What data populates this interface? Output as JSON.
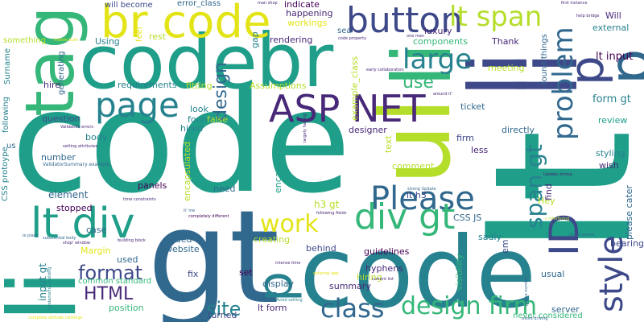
{
  "background": "#ffffff",
  "palette": {
    "yellow": "#e3e418",
    "lime": "#b5de2b",
    "green": "#6ece58",
    "mint": "#35b779",
    "teal": "#1f9e89",
    "cyan": "#26828e",
    "blue": "#31688e",
    "indigo": "#3e4989",
    "purple": "#482878",
    "dark": "#440154"
  },
  "words": [
    {
      "text": "code",
      "c": "teal"
    },
    {
      "text": "lt",
      "c": "teal"
    },
    {
      "text": "gt",
      "c": "blue"
    },
    {
      "text": "code",
      "c": "cyan"
    },
    {
      "text": "ul",
      "c": "lime"
    },
    {
      "text": "li",
      "c": "teal"
    },
    {
      "text": "li",
      "c": "mint"
    },
    {
      "text": "code",
      "c": "teal"
    },
    {
      "text": "br",
      "c": "teal"
    },
    {
      "text": "li",
      "c": "indigo"
    },
    {
      "text": "li",
      "c": "indigo"
    },
    {
      "text": "tag",
      "c": "mint"
    },
    {
      "text": "br code",
      "c": "yellow"
    },
    {
      "text": "p",
      "c": "blue"
    },
    {
      "text": "p",
      "c": "indigo"
    },
    {
      "text": "button",
      "c": "indigo"
    },
    {
      "text": "lt span",
      "c": "lime"
    },
    {
      "text": "large",
      "c": "cyan"
    },
    {
      "text": "page",
      "c": "cyan"
    },
    {
      "text": "ASP NET",
      "c": "purple"
    },
    {
      "text": "p",
      "c": "cyan"
    },
    {
      "text": "Please",
      "c": "blue"
    },
    {
      "text": "div gt",
      "c": "mint"
    },
    {
      "text": "lt div",
      "c": "teal"
    },
    {
      "text": "ID",
      "c": "indigo"
    },
    {
      "text": "work",
      "c": "yellow"
    },
    {
      "text": "problem",
      "c": "blue"
    },
    {
      "text": "style",
      "c": "indigo"
    },
    {
      "text": "design firm",
      "c": "mint"
    },
    {
      "text": "class",
      "c": "blue"
    },
    {
      "text": "site",
      "c": "cyan"
    },
    {
      "text": "format",
      "c": "indigo"
    },
    {
      "text": "HTML",
      "c": "purple"
    },
    {
      "text": "use",
      "c": "mint"
    },
    {
      "text": "design",
      "c": "blue"
    },
    {
      "text": "span gt",
      "c": "cyan"
    },
    {
      "text": "lt input",
      "c": "dark"
    },
    {
      "text": "form gt",
      "c": "cyan"
    },
    {
      "text": "ticket",
      "c": "blue"
    },
    {
      "text": "review",
      "c": "teal"
    },
    {
      "text": "styling",
      "c": "cyan"
    },
    {
      "text": "wish",
      "c": "purple"
    },
    {
      "text": "please cater",
      "c": "blue"
    },
    {
      "text": "bearing",
      "c": "indigo"
    },
    {
      "text": "directly",
      "c": "blue"
    },
    {
      "text": "lt h3",
      "c": "indigo"
    },
    {
      "text": "h3 gt",
      "c": "lime"
    },
    {
      "text": "sadly",
      "c": "cyan"
    },
    {
      "text": "guidelines",
      "c": "dark"
    },
    {
      "text": "hyphens",
      "c": "purple"
    },
    {
      "text": "usual",
      "c": "blue"
    },
    {
      "text": "summary",
      "c": "purple"
    },
    {
      "text": "server",
      "c": "blue"
    },
    {
      "text": "never considered",
      "c": "mint"
    },
    {
      "text": "turned",
      "c": "indigo"
    },
    {
      "text": "lt form",
      "c": "purple"
    },
    {
      "text": "behind",
      "c": "indigo"
    },
    {
      "text": "creating",
      "c": "lime"
    },
    {
      "text": "website",
      "c": "blue"
    },
    {
      "text": "added",
      "c": "blue"
    },
    {
      "text": "position",
      "c": "mint"
    },
    {
      "text": "used",
      "c": "blue"
    },
    {
      "text": "Margin",
      "c": "yellow"
    },
    {
      "text": "input gt",
      "c": "cyan"
    },
    {
      "text": "case",
      "c": "blue"
    },
    {
      "text": "element",
      "c": "blue"
    },
    {
      "text": "stopped",
      "c": "dark"
    },
    {
      "text": "panels",
      "c": "dark"
    },
    {
      "text": "number",
      "c": "blue"
    },
    {
      "text": "question",
      "c": "indigo"
    },
    {
      "text": "body",
      "c": "cyan"
    },
    {
      "text": "look",
      "c": "cyan"
    },
    {
      "text": "found",
      "c": "cyan"
    },
    {
      "text": "hired",
      "c": "cyan"
    },
    {
      "text": "need",
      "c": "blue"
    },
    {
      "text": "requirements",
      "c": "cyan"
    },
    {
      "text": "fitting",
      "c": "lime"
    },
    {
      "text": "Assumptions",
      "c": "lime"
    },
    {
      "text": "hire",
      "c": "purple"
    },
    {
      "text": "Using",
      "c": "cyan"
    },
    {
      "text": "rest",
      "c": "lime"
    },
    {
      "text": "will become",
      "c": "indigo"
    },
    {
      "text": "error_class",
      "c": "blue"
    },
    {
      "text": "indicate",
      "c": "dark"
    },
    {
      "text": "happening",
      "c": "purple"
    },
    {
      "text": "rendering",
      "c": "purple"
    },
    {
      "text": "workings",
      "c": "yellow"
    },
    {
      "text": "luxury",
      "c": "purple"
    },
    {
      "text": "components",
      "c": "mint"
    },
    {
      "text": "Thank",
      "c": "purple"
    },
    {
      "text": "meeting",
      "c": "lime"
    },
    {
      "text": "external",
      "c": "cyan"
    },
    {
      "text": "Will",
      "c": "purple"
    },
    {
      "text": "something",
      "c": "lime"
    },
    {
      "text": "generating",
      "c": "blue"
    },
    {
      "text": "Surname",
      "c": "cyan"
    },
    {
      "text": "following",
      "c": "cyan"
    },
    {
      "text": "CSS protoype",
      "c": "cyan"
    },
    {
      "text": "feel",
      "c": "yellow"
    },
    {
      "text": "sea",
      "c": "blue"
    },
    {
      "text": "CSS JS",
      "c": "blue"
    },
    {
      "text": "designer",
      "c": "purple"
    },
    {
      "text": "text",
      "c": "lime"
    },
    {
      "text": "comment",
      "c": "lime"
    },
    {
      "text": "less",
      "c": "purple"
    },
    {
      "text": "firm",
      "c": "indigo"
    },
    {
      "text": "Hey",
      "c": "lime"
    },
    {
      "text": "find",
      "c": "purple"
    },
    {
      "text": "em",
      "c": "indigo"
    },
    {
      "text": "visibility",
      "c": "mint"
    },
    {
      "text": "set",
      "c": "dark"
    },
    {
      "text": "display",
      "c": "blue"
    },
    {
      "text": "hiring",
      "c": "lime"
    },
    {
      "text": "fix",
      "c": "indigo"
    },
    {
      "text": "common standard",
      "c": "mint"
    },
    {
      "text": "encapsulated",
      "c": "lime"
    },
    {
      "text": "encapsulate",
      "c": "teal"
    },
    {
      "text": "false",
      "c": "lime"
    },
    {
      "text": "gap",
      "c": "cyan"
    },
    {
      "text": "example_class",
      "c": "lime"
    },
    {
      "text": "found things",
      "c": "blue"
    },
    {
      "text": "us",
      "c": "blue"
    },
    {
      "text": "ValidatorSummary example",
      "c": "blue"
    },
    {
      "text": "setting attributes",
      "c": "purple"
    },
    {
      "text": "Validation errors",
      "c": "purple"
    },
    {
      "text": "time constraints",
      "c": "purple"
    },
    {
      "text": "substantial body",
      "c": "blue"
    },
    {
      "text": "shop' window",
      "c": "purple"
    },
    {
      "text": "building block",
      "c": "purple"
    },
    {
      "text": "completely different",
      "c": "dark"
    },
    {
      "text": "it' me",
      "c": "blue"
    },
    {
      "text": "intense time",
      "c": "purple"
    },
    {
      "text": "following fields",
      "c": "purple"
    },
    {
      "text": "strong Update",
      "c": "blue"
    },
    {
      "text": "Update strong",
      "c": "purple"
    },
    {
      "text": "s interfering",
      "c": "lime"
    },
    {
      "text": "make phone",
      "c": "blue"
    },
    {
      "text": "phone number",
      "c": "blue"
    },
    {
      "text": "current list",
      "c": "purple"
    },
    {
      "text": "Avoid setting",
      "c": "cyan"
    },
    {
      "text": "external app",
      "c": "yellow"
    },
    {
      "text": "avoid driving",
      "c": "blue"
    },
    {
      "text": "fundamental building",
      "c": "cyan"
    },
    {
      "text": "complete altitude rankings",
      "c": "yellow"
    },
    {
      "text": "ie place",
      "c": "blue"
    },
    {
      "text": "largely having",
      "c": "purple"
    },
    {
      "text": "around it'",
      "c": "purple"
    },
    {
      "text": "early collaboration",
      "c": "purple"
    },
    {
      "text": "one man",
      "c": "purple"
    },
    {
      "text": "code property",
      "c": "purple"
    },
    {
      "text": "man shop",
      "c": "purple"
    },
    {
      "text": "first instance",
      "c": "purple"
    },
    {
      "text": "help bridge",
      "c": "purple"
    },
    {
      "text": "mobile built",
      "c": "yellow"
    }
  ]
}
